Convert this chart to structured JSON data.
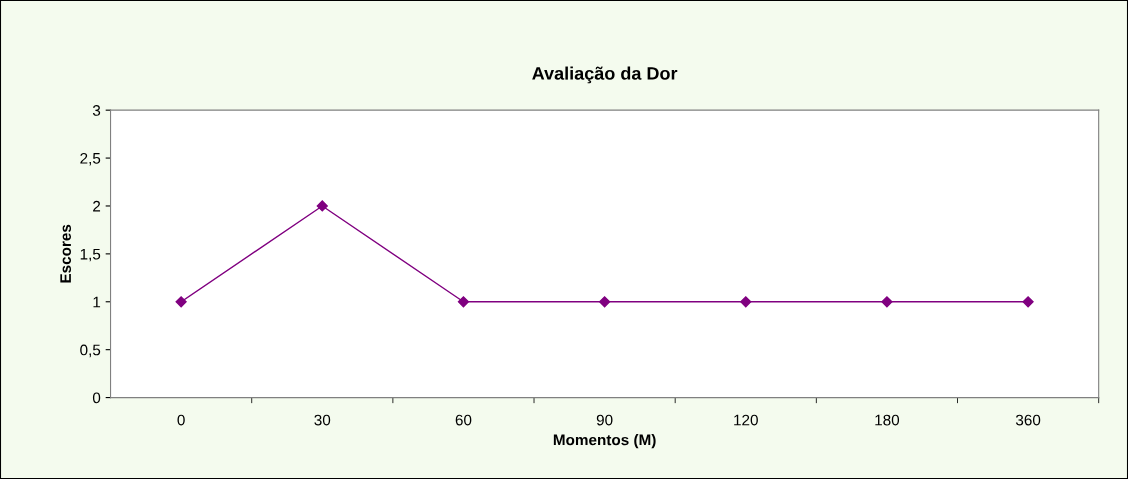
{
  "chart_data": {
    "type": "line",
    "title": "Avaliação da Dor",
    "xlabel": "Momentos (M)",
    "ylabel": "Escores",
    "categories": [
      "0",
      "30",
      "60",
      "90",
      "120",
      "180",
      "360"
    ],
    "series": [
      {
        "color": "#800080",
        "values": [
          1,
          2,
          1,
          1,
          1,
          1,
          1
        ]
      }
    ],
    "ylim": [
      0,
      3
    ],
    "yticks": [
      0,
      {
        "value": 0.5,
        "label": "0,5"
      },
      1,
      {
        "value": 1.5,
        "label": "1,5"
      },
      2,
      {
        "value": 2.5,
        "label": "2,5"
      },
      3
    ],
    "marker": "diamond",
    "line_style": "solid",
    "grid": false,
    "legend": false
  }
}
